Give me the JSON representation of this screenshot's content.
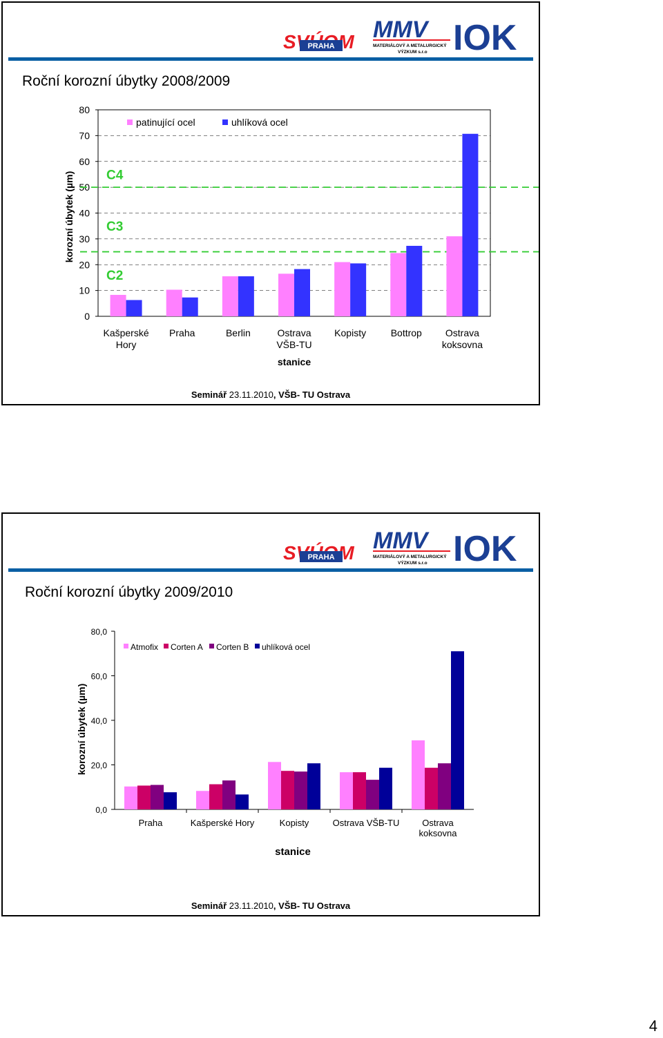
{
  "slide1": {
    "title": "Roční korozní úbytky 2008/2009",
    "footer": {
      "prefix": "Seminář",
      "date": "23.11.2010",
      "suffix": ", VŠB- TU Ostrava"
    },
    "logos": {
      "svuom": "SVÚOM",
      "svuom_sub": "PRAHA",
      "mmv": "MMV",
      "mmv_sub1": "MATERIÁLOVÝ A METALURGICKÝ",
      "mmv_sub2": "VÝZKUM s.r.o",
      "iok": "IOK"
    },
    "chart_data": {
      "type": "bar",
      "xlabel": "stanice",
      "ylabel": "korozní úbytek (µm)",
      "ylim": [
        0,
        80
      ],
      "yticks": [
        "0",
        "10",
        "20",
        "30",
        "40",
        "50",
        "60",
        "70",
        "80"
      ],
      "grid": true,
      "legend_position": "top",
      "categories": [
        [
          "Kašperské",
          "Hory"
        ],
        [
          "Praha"
        ],
        [
          "Berlin"
        ],
        [
          "Ostrava",
          "VŠB-TU"
        ],
        [
          "Kopisty"
        ],
        [
          "Bottrop"
        ],
        [
          "Ostrava",
          "koksovna"
        ]
      ],
      "series": [
        {
          "name": "patinující ocel",
          "color": "#ff80ff",
          "values": [
            8.3,
            10.3,
            15.5,
            16.5,
            21,
            24.5,
            31
          ]
        },
        {
          "name": "uhlíková ocel",
          "color": "#3333ff",
          "values": [
            6.3,
            7.3,
            15.5,
            18.3,
            20.5,
            27.3,
            70.7
          ]
        }
      ],
      "category_thresholds": [
        {
          "label": "C4",
          "value": 50,
          "color": "#33cc33"
        },
        {
          "label": "C3",
          "value": 25,
          "color": "#33cc33"
        },
        {
          "label": "C2",
          "value": null,
          "color": "#33cc33"
        }
      ]
    }
  },
  "slide2": {
    "title": "Roční korozní úbytky 2009/2010",
    "footer": {
      "prefix": "Seminář",
      "date": "23.11.2010",
      "suffix": ", VŠB- TU Ostrava"
    },
    "logos": {
      "svuom": "SVÚOM",
      "svuom_sub": "PRAHA",
      "mmv": "MMV",
      "mmv_sub1": "MATERIÁLOVÝ A METALURGICKÝ",
      "mmv_sub2": "VÝZKUM s.r.o",
      "iok": "IOK"
    },
    "chart_data": {
      "type": "bar",
      "xlabel": "stanice",
      "ylabel": "korozní úbytek (µm)",
      "ylim": [
        0,
        80
      ],
      "yticks": [
        "0,0",
        "20,0",
        "40,0",
        "60,0",
        "80,0"
      ],
      "grid": false,
      "legend_position": "top",
      "categories": [
        [
          "Praha"
        ],
        [
          "Kašperské Hory"
        ],
        [
          "Kopisty"
        ],
        [
          "Ostrava VŠB-TU"
        ],
        [
          "Ostrava",
          "koksovna"
        ]
      ],
      "series": [
        {
          "name": "Atmofix",
          "color": "#ff80ff",
          "values": [
            10.3,
            8.3,
            21.3,
            16.7,
            31
          ]
        },
        {
          "name": "Corten A",
          "color": "#cc0066",
          "values": [
            10.7,
            11.3,
            17.3,
            16.7,
            18.7
          ]
        },
        {
          "name": "Corten B",
          "color": "#800080",
          "values": [
            11,
            13,
            17,
            13.3,
            20.7
          ]
        },
        {
          "name": "uhlíková ocel",
          "color": "#000099",
          "values": [
            7.7,
            6.7,
            20.7,
            18.7,
            71
          ]
        }
      ]
    }
  },
  "page_number": "4"
}
